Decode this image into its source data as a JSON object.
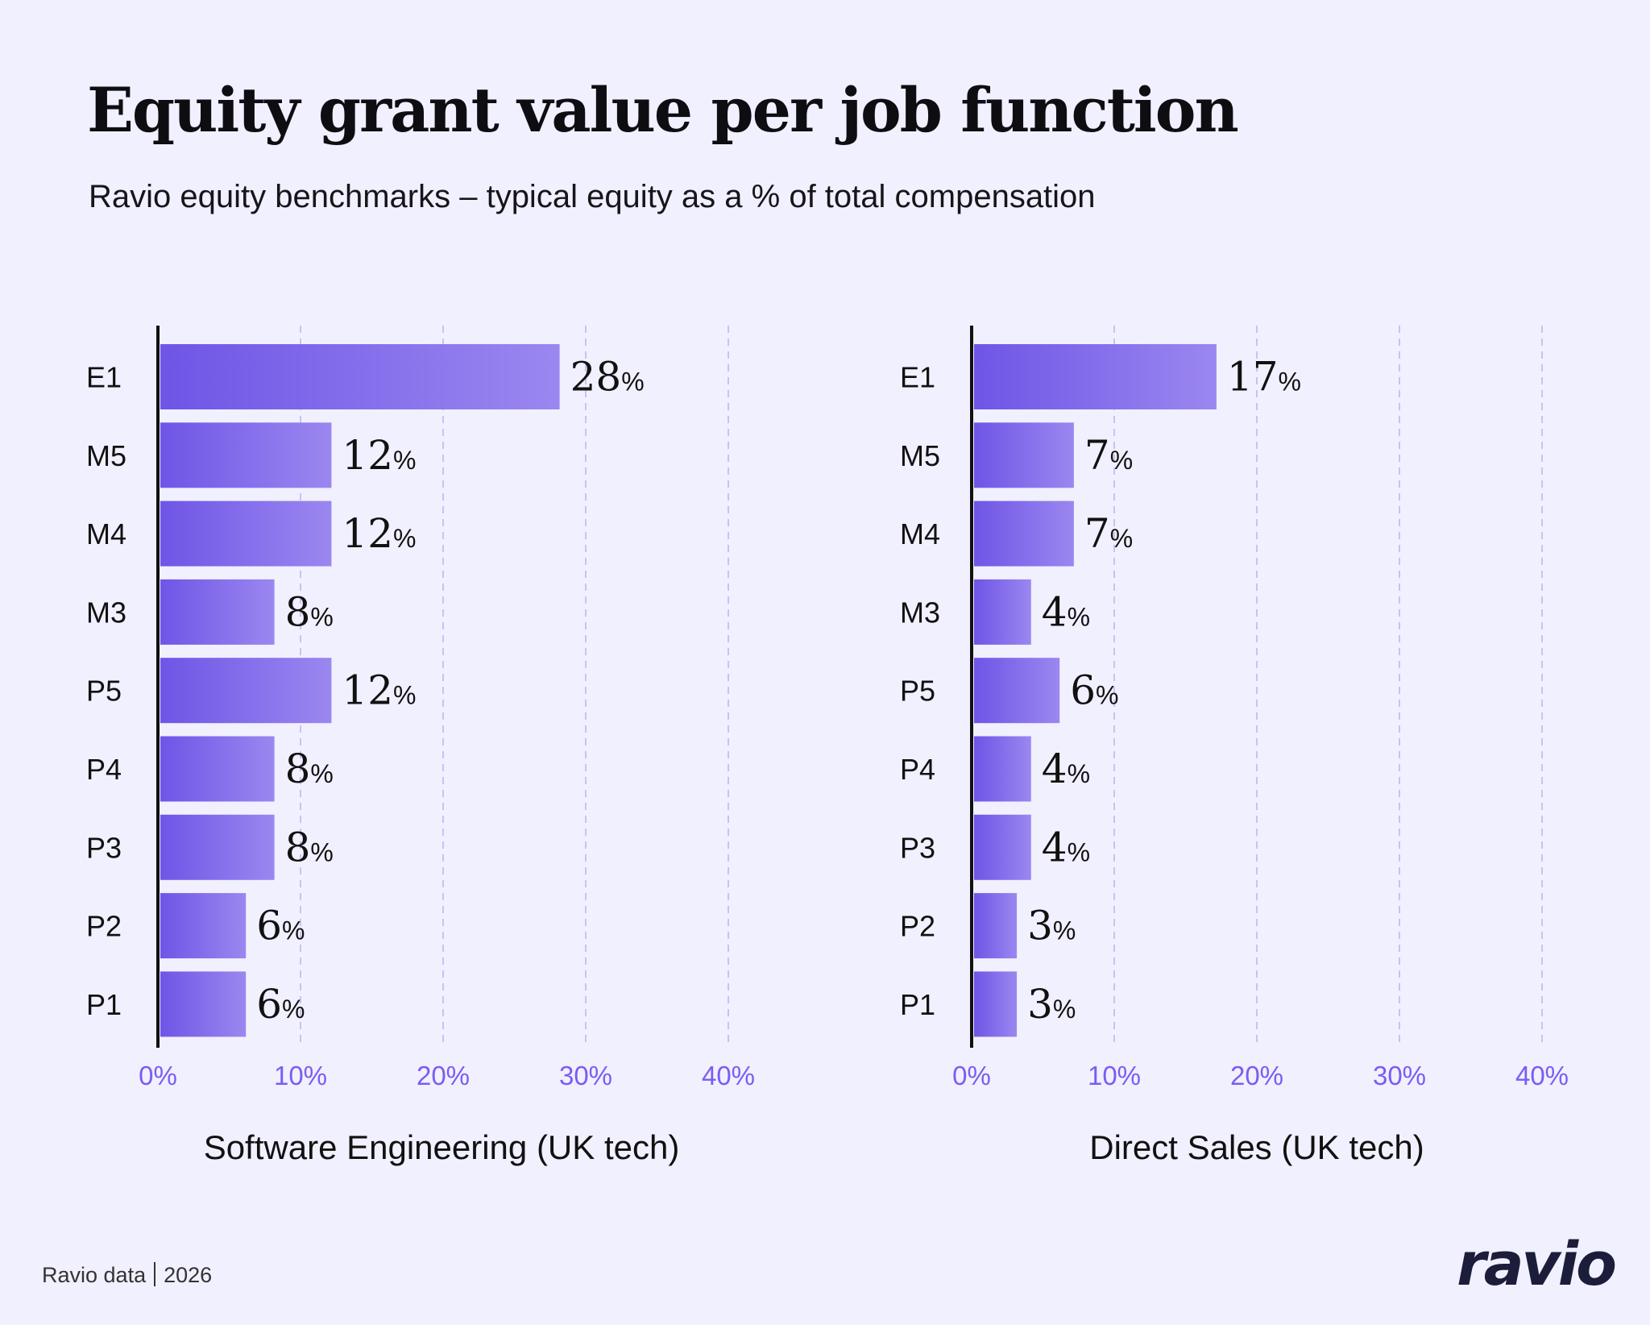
{
  "title": "Equity grant value per job function",
  "subtitle": "Ravio equity benchmarks – typical equity as a % of total compensation",
  "footer": {
    "source": "Ravio data",
    "year": "2026"
  },
  "logo": "ravio",
  "colors": {
    "background": "#f1f0fe",
    "bar_start": "#6f55e6",
    "bar_end": "#9b87f0",
    "tick": "#7b5cf2",
    "grid": "#c9c2f3"
  },
  "chart_data": [
    {
      "type": "bar",
      "orientation": "horizontal",
      "xlabel": "Software Engineering (UK tech)",
      "categories": [
        "E1",
        "M5",
        "M4",
        "M3",
        "P5",
        "P4",
        "P3",
        "P2",
        "P1"
      ],
      "values": [
        28,
        12,
        12,
        8,
        12,
        8,
        8,
        6,
        6
      ],
      "value_suffix": "%",
      "xlim": [
        0,
        40
      ],
      "xticks": [
        "0%",
        "10%",
        "20%",
        "30%",
        "40%"
      ],
      "grid": "vertical dashed"
    },
    {
      "type": "bar",
      "orientation": "horizontal",
      "xlabel": "Direct Sales (UK tech)",
      "categories": [
        "E1",
        "M5",
        "M4",
        "M3",
        "P5",
        "P4",
        "P3",
        "P2",
        "P1"
      ],
      "values": [
        17,
        7,
        7,
        4,
        6,
        4,
        4,
        3,
        3
      ],
      "value_suffix": "%",
      "xlim": [
        0,
        40
      ],
      "xticks": [
        "0%",
        "10%",
        "20%",
        "30%",
        "40%"
      ],
      "grid": "vertical dashed"
    }
  ]
}
